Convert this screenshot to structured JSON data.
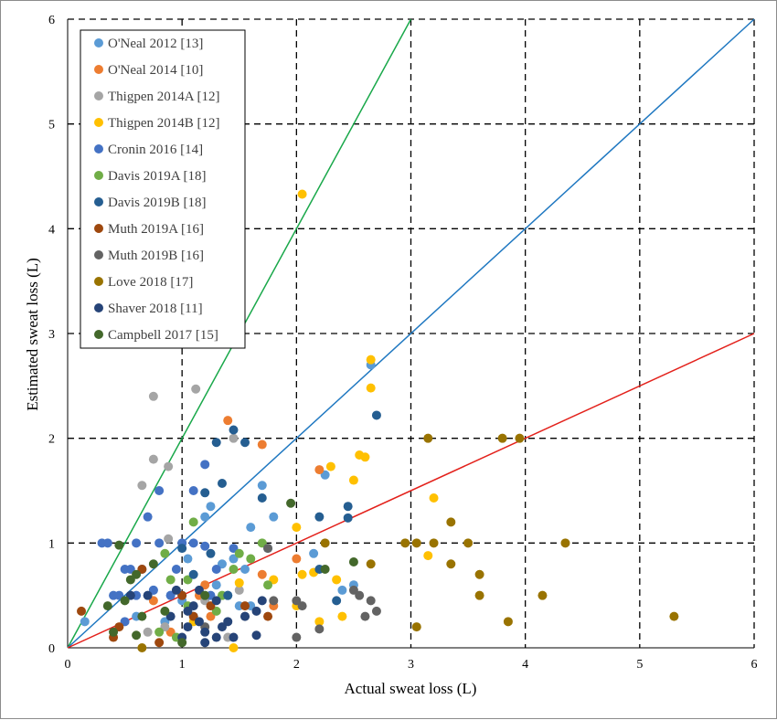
{
  "chart_data": {
    "type": "scatter",
    "xlabel": "Actual sweat loss (L)",
    "ylabel": "Estimated sweat loss (L)",
    "xlim": [
      0,
      6
    ],
    "ylim": [
      0,
      6
    ],
    "xticks": [
      "0",
      "1",
      "2",
      "3",
      "4",
      "5",
      "6"
    ],
    "yticks": [
      "0",
      "1",
      "2",
      "3",
      "4",
      "5",
      "6"
    ],
    "grid": "dashed",
    "legend_position": "top-left",
    "reference_lines": [
      {
        "slope": 2,
        "color": "#19a84a"
      },
      {
        "slope": 1,
        "color": "#1f78c1"
      },
      {
        "slope": 0.5,
        "color": "#e3211b"
      }
    ],
    "series": [
      {
        "name": "O'Neal 2012 [13]",
        "color": "#5b9bd5",
        "points": [
          [
            0.15,
            0.25
          ],
          [
            0.85,
            0.25
          ],
          [
            0.9,
            0.5
          ],
          [
            1.05,
            0.85
          ],
          [
            1.2,
            1.25
          ],
          [
            1.25,
            1.35
          ],
          [
            1.35,
            0.8
          ],
          [
            1.4,
            0.5
          ],
          [
            1.5,
            0.4
          ],
          [
            1.6,
            1.15
          ],
          [
            1.7,
            1.55
          ],
          [
            1.8,
            1.25
          ],
          [
            1.6,
            0.4
          ],
          [
            2.15,
            0.9
          ],
          [
            2.25,
            1.65
          ],
          [
            2.4,
            0.55
          ],
          [
            2.5,
            0.6
          ],
          [
            2.65,
            2.7
          ],
          [
            0.6,
            0.3
          ],
          [
            0.75,
            0.55
          ],
          [
            1.0,
            0.45
          ],
          [
            1.1,
            0.3
          ],
          [
            1.3,
            0.6
          ],
          [
            1.45,
            0.85
          ],
          [
            1.55,
            0.75
          ],
          [
            1.75,
            0.95
          ]
        ]
      },
      {
        "name": "O'Neal 2014 [10]",
        "color": "#ed7d31",
        "points": [
          [
            1.4,
            2.17
          ],
          [
            1.7,
            1.94
          ],
          [
            2.2,
            1.7
          ],
          [
            2.0,
            0.85
          ],
          [
            1.7,
            0.7
          ],
          [
            1.8,
            0.4
          ],
          [
            1.2,
            0.6
          ],
          [
            1.15,
            0.5
          ],
          [
            0.9,
            0.15
          ],
          [
            1.25,
            0.3
          ],
          [
            0.75,
            0.45
          ]
        ]
      },
      {
        "name": "Thigpen 2014A [12]",
        "color": "#a5a5a5",
        "points": [
          [
            0.75,
            2.4
          ],
          [
            1.12,
            2.47
          ],
          [
            0.65,
            1.55
          ],
          [
            0.75,
            1.8
          ],
          [
            0.88,
            1.73
          ],
          [
            0.88,
            1.04
          ],
          [
            1.45,
            2.0
          ],
          [
            0.85,
            0.2
          ],
          [
            0.7,
            0.15
          ],
          [
            1.2,
            0.45
          ],
          [
            1.5,
            0.55
          ],
          [
            1.4,
            0.1
          ]
        ]
      },
      {
        "name": "Thigpen 2014B [12]",
        "color": "#ffc000",
        "points": [
          [
            2.05,
            4.33
          ],
          [
            2.65,
            2.75
          ],
          [
            2.65,
            2.48
          ],
          [
            2.55,
            1.84
          ],
          [
            2.6,
            1.82
          ],
          [
            2.3,
            1.73
          ],
          [
            2.5,
            1.6
          ],
          [
            2.4,
            0.3
          ],
          [
            2.2,
            0.25
          ],
          [
            2.0,
            1.15
          ],
          [
            2.05,
            0.7
          ],
          [
            2.15,
            0.72
          ],
          [
            2.35,
            0.65
          ],
          [
            3.2,
            1.43
          ],
          [
            3.15,
            0.88
          ],
          [
            1.45,
            0.0
          ],
          [
            1.5,
            0.62
          ],
          [
            1.8,
            0.65
          ],
          [
            1.1,
            0.25
          ],
          [
            2.0,
            0.4
          ]
        ]
      },
      {
        "name": "Cronin 2016 [14]",
        "color": "#4472c4",
        "points": [
          [
            0.3,
            1.0
          ],
          [
            0.35,
            1.0
          ],
          [
            0.7,
            1.25
          ],
          [
            0.8,
            1.5
          ],
          [
            0.8,
            1.0
          ],
          [
            0.6,
            1.0
          ],
          [
            1.0,
            1.0
          ],
          [
            1.1,
            1.0
          ],
          [
            1.2,
            0.97
          ],
          [
            0.55,
            0.75
          ],
          [
            0.65,
            0.75
          ],
          [
            0.75,
            0.55
          ],
          [
            0.9,
            0.5
          ],
          [
            0.95,
            0.75
          ],
          [
            0.4,
            0.5
          ],
          [
            0.45,
            0.5
          ],
          [
            0.5,
            0.25
          ],
          [
            1.2,
            1.75
          ],
          [
            1.1,
            1.5
          ],
          [
            1.3,
            0.75
          ],
          [
            1.45,
            0.95
          ],
          [
            1.0,
            0.5
          ],
          [
            1.25,
            0.5
          ],
          [
            0.5,
            0.75
          ],
          [
            0.6,
            0.5
          ]
        ]
      },
      {
        "name": "Davis 2019A [18]",
        "color": "#70ad47",
        "points": [
          [
            0.85,
            0.9
          ],
          [
            1.05,
            0.65
          ],
          [
            1.1,
            1.2
          ],
          [
            1.35,
            0.5
          ],
          [
            1.45,
            0.75
          ],
          [
            1.5,
            0.9
          ],
          [
            1.7,
            1.0
          ],
          [
            1.75,
            0.6
          ],
          [
            0.95,
            0.1
          ],
          [
            1.05,
            0.4
          ],
          [
            1.3,
            0.35
          ],
          [
            0.9,
            0.65
          ],
          [
            0.8,
            0.15
          ],
          [
            1.6,
            0.85
          ]
        ]
      },
      {
        "name": "Davis 2019B [18]",
        "color": "#255e91",
        "points": [
          [
            1.45,
            2.08
          ],
          [
            1.55,
            1.96
          ],
          [
            1.3,
            1.96
          ],
          [
            1.35,
            1.57
          ],
          [
            1.2,
            1.48
          ],
          [
            1.7,
            1.43
          ],
          [
            2.7,
            2.22
          ],
          [
            2.45,
            1.35
          ],
          [
            2.45,
            1.24
          ],
          [
            2.2,
            1.25
          ],
          [
            2.35,
            0.45
          ],
          [
            2.2,
            0.75
          ],
          [
            1.0,
            0.95
          ],
          [
            1.1,
            0.7
          ],
          [
            1.4,
            0.5
          ],
          [
            1.25,
            0.9
          ]
        ]
      },
      {
        "name": "Muth 2019A [16]",
        "color": "#9e480e",
        "points": [
          [
            0.12,
            0.35
          ],
          [
            0.4,
            0.1
          ],
          [
            0.45,
            0.2
          ],
          [
            1.0,
            0.5
          ],
          [
            1.1,
            0.3
          ],
          [
            1.25,
            0.4
          ],
          [
            1.55,
            0.4
          ],
          [
            1.75,
            0.3
          ],
          [
            0.65,
            0.75
          ],
          [
            0.8,
            0.05
          ]
        ]
      },
      {
        "name": "Muth 2019B [16]",
        "color": "#636363",
        "points": [
          [
            1.75,
            0.95
          ],
          [
            1.8,
            0.45
          ],
          [
            2.0,
            0.45
          ],
          [
            2.05,
            0.4
          ],
          [
            2.0,
            0.1
          ],
          [
            2.2,
            0.18
          ],
          [
            2.55,
            0.5
          ],
          [
            2.6,
            0.3
          ],
          [
            2.65,
            0.45
          ],
          [
            2.7,
            0.35
          ],
          [
            2.5,
            0.55
          ],
          [
            1.55,
            0.3
          ],
          [
            1.2,
            0.2
          ]
        ]
      },
      {
        "name": "Love 2018 [17]",
        "color": "#997300",
        "points": [
          [
            3.15,
            2.0
          ],
          [
            3.8,
            2.0
          ],
          [
            3.95,
            2.0
          ],
          [
            3.35,
            1.2
          ],
          [
            3.05,
            1.0
          ],
          [
            2.95,
            1.0
          ],
          [
            3.2,
            1.0
          ],
          [
            3.5,
            1.0
          ],
          [
            4.35,
            1.0
          ],
          [
            3.35,
            0.8
          ],
          [
            3.6,
            0.7
          ],
          [
            3.6,
            0.5
          ],
          [
            4.15,
            0.5
          ],
          [
            3.85,
            0.25
          ],
          [
            3.05,
            0.2
          ],
          [
            5.3,
            0.3
          ],
          [
            2.65,
            0.8
          ],
          [
            2.25,
            1.0
          ],
          [
            0.65,
            0.0
          ]
        ]
      },
      {
        "name": "Shaver 2018 [11]",
        "color": "#264478",
        "points": [
          [
            0.55,
            0.5
          ],
          [
            0.7,
            0.5
          ],
          [
            0.9,
            0.3
          ],
          [
            1.0,
            0.1
          ],
          [
            1.05,
            0.2
          ],
          [
            1.15,
            0.25
          ],
          [
            1.2,
            0.15
          ],
          [
            1.3,
            0.1
          ],
          [
            1.35,
            0.2
          ],
          [
            1.45,
            0.1
          ],
          [
            1.55,
            0.3
          ],
          [
            1.65,
            0.35
          ],
          [
            1.7,
            0.45
          ],
          [
            1.05,
            0.35
          ],
          [
            1.1,
            0.4
          ],
          [
            1.3,
            0.45
          ],
          [
            1.2,
            0.05
          ],
          [
            1.65,
            0.12
          ],
          [
            0.95,
            0.55
          ],
          [
            1.15,
            0.55
          ],
          [
            1.4,
            0.25
          ]
        ]
      },
      {
        "name": "Campbell 2017 [15]",
        "color": "#43682b",
        "points": [
          [
            1.95,
            1.38
          ],
          [
            0.6,
            0.7
          ],
          [
            0.55,
            0.65
          ],
          [
            0.75,
            0.8
          ],
          [
            0.45,
            0.98
          ],
          [
            0.35,
            0.4
          ],
          [
            0.4,
            0.15
          ],
          [
            0.6,
            0.12
          ],
          [
            0.65,
            0.3
          ],
          [
            0.5,
            0.45
          ],
          [
            1.2,
            0.5
          ],
          [
            2.25,
            0.75
          ],
          [
            2.5,
            0.82
          ],
          [
            1.0,
            0.05
          ],
          [
            0.85,
            0.35
          ]
        ]
      }
    ]
  }
}
